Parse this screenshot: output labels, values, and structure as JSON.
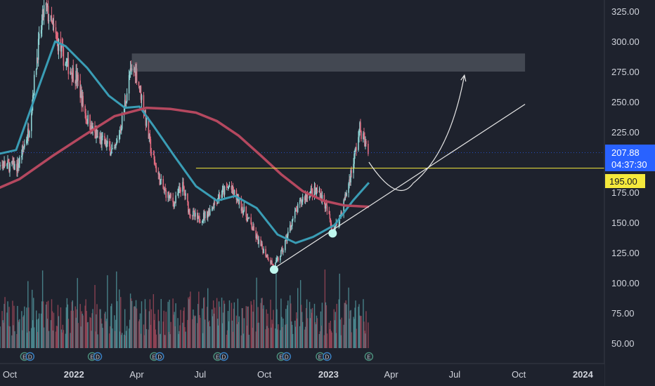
{
  "chart_data": {
    "type": "candlestick",
    "title": "",
    "xlabel": "",
    "ylabel": "",
    "ylim": [
      30,
      335
    ],
    "y_ticks": [
      "325.00",
      "300.00",
      "275.00",
      "250.00",
      "225.00",
      "200.00",
      "175.00",
      "150.00",
      "125.00",
      "100.00",
      "75.00",
      "50.00"
    ],
    "y_tick_values": [
      325,
      300,
      275,
      250,
      225,
      200,
      175,
      150,
      125,
      100,
      75,
      50
    ],
    "x_ticks": [
      {
        "label": "Oct",
        "date": "2021-10-01"
      },
      {
        "label": "2022",
        "date": "2022-01-01"
      },
      {
        "label": "Apr",
        "date": "2022-04-01"
      },
      {
        "label": "Jul",
        "date": "2022-07-01"
      },
      {
        "label": "Oct",
        "date": "2022-10-01"
      },
      {
        "label": "2023",
        "date": "2023-01-01"
      },
      {
        "label": "Apr",
        "date": "2023-04-01"
      },
      {
        "label": "Jul",
        "date": "2023-07-01"
      },
      {
        "label": "Oct",
        "date": "2023-10-01"
      },
      {
        "label": "2024",
        "date": "2024-01-01"
      }
    ],
    "price_anchors": [
      [
        "2021-09-01",
        206
      ],
      [
        "2021-09-20",
        198
      ],
      [
        "2021-10-12",
        196
      ],
      [
        "2021-10-28",
        226
      ],
      [
        "2021-11-10",
        292
      ],
      [
        "2021-11-20",
        330
      ],
      [
        "2021-12-05",
        305
      ],
      [
        "2021-12-20",
        282
      ],
      [
        "2022-01-05",
        270
      ],
      [
        "2022-01-18",
        238
      ],
      [
        "2022-02-01",
        222
      ],
      [
        "2022-02-15",
        215
      ],
      [
        "2022-02-28",
        207
      ],
      [
        "2022-03-10",
        232
      ],
      [
        "2022-03-22",
        272
      ],
      [
        "2022-03-30",
        278
      ],
      [
        "2022-04-10",
        248
      ],
      [
        "2022-04-22",
        208
      ],
      [
        "2022-05-08",
        178
      ],
      [
        "2022-05-25",
        166
      ],
      [
        "2022-06-05",
        182
      ],
      [
        "2022-06-15",
        160
      ],
      [
        "2022-06-28",
        152
      ],
      [
        "2022-07-12",
        158
      ],
      [
        "2022-07-28",
        172
      ],
      [
        "2022-08-12",
        180
      ],
      [
        "2022-08-25",
        168
      ],
      [
        "2022-09-10",
        150
      ],
      [
        "2022-09-25",
        131
      ],
      [
        "2022-10-08",
        120
      ],
      [
        "2022-10-15",
        113
      ],
      [
        "2022-10-28",
        128
      ],
      [
        "2022-11-10",
        152
      ],
      [
        "2022-11-25",
        170
      ],
      [
        "2022-12-08",
        176
      ],
      [
        "2022-12-20",
        175
      ],
      [
        "2022-12-30",
        160
      ],
      [
        "2023-01-07",
        145
      ],
      [
        "2023-01-15",
        150
      ],
      [
        "2023-01-27",
        175
      ],
      [
        "2023-02-05",
        198
      ],
      [
        "2023-02-15",
        228
      ],
      [
        "2023-02-21",
        218
      ],
      [
        "2023-02-27",
        208
      ]
    ],
    "series": [
      {
        "name": "",
        "kind": "moving-average",
        "color": "#3a9db5",
        "points": [
          [
            "2021-09-01",
            205
          ],
          [
            "2021-10-10",
            210
          ],
          [
            "2021-11-10",
            260
          ],
          [
            "2021-12-05",
            300
          ],
          [
            "2021-12-20",
            296
          ],
          [
            "2022-01-20",
            278
          ],
          [
            "2022-02-20",
            255
          ],
          [
            "2022-03-15",
            245
          ],
          [
            "2022-04-05",
            246
          ],
          [
            "2022-04-25",
            230
          ],
          [
            "2022-05-25",
            205
          ],
          [
            "2022-06-25",
            180
          ],
          [
            "2022-07-25",
            168
          ],
          [
            "2022-08-20",
            172
          ],
          [
            "2022-09-20",
            162
          ],
          [
            "2022-10-20",
            140
          ],
          [
            "2022-11-15",
            133
          ],
          [
            "2022-12-10",
            138
          ],
          [
            "2023-01-10",
            148
          ],
          [
            "2023-02-05",
            168
          ],
          [
            "2023-02-28",
            183
          ]
        ]
      },
      {
        "name": "",
        "kind": "moving-average",
        "color": "#b5485f",
        "points": [
          [
            "2021-09-01",
            175
          ],
          [
            "2021-10-15",
            186
          ],
          [
            "2021-12-01",
            205
          ],
          [
            "2022-01-15",
            222
          ],
          [
            "2022-02-28",
            238
          ],
          [
            "2022-04-15",
            245
          ],
          [
            "2022-05-20",
            244
          ],
          [
            "2022-06-25",
            241
          ],
          [
            "2022-07-25",
            234
          ],
          [
            "2022-08-25",
            222
          ],
          [
            "2022-09-25",
            206
          ],
          [
            "2022-10-25",
            190
          ],
          [
            "2022-11-25",
            176
          ],
          [
            "2022-12-25",
            168
          ],
          [
            "2023-01-25",
            164
          ],
          [
            "2023-02-28",
            163
          ]
        ]
      }
    ],
    "current_price": {
      "value": 207.88,
      "label": "207.88",
      "countdown": "04:37:30",
      "color": "#2962ff"
    },
    "horizontal_level": {
      "value": 195,
      "label": "195.00",
      "color": "#f5e93c"
    },
    "resistance_zone": {
      "from": 275,
      "to": 290,
      "start": "2022-03-25",
      "end": "2023-10-10"
    },
    "trendline": {
      "start": [
        "2022-10-15",
        112
      ],
      "end": [
        "2023-10-10",
        248
      ]
    },
    "projection": {
      "points": [
        [
          "2023-02-28",
          200
        ],
        [
          "2023-04-10",
          182
        ],
        [
          "2023-05-25",
          190
        ],
        [
          "2023-07-15",
          272
        ]
      ]
    },
    "pivot_markers": [
      [
        "2022-10-15",
        111
      ],
      [
        "2023-01-07",
        141
      ]
    ],
    "event_badges": [
      {
        "label": "E",
        "date": "2021-10-22"
      },
      {
        "label": "D",
        "date": "2021-10-30"
      },
      {
        "label": "E",
        "date": "2022-01-27"
      },
      {
        "label": "D",
        "date": "2022-02-04"
      },
      {
        "label": "E",
        "date": "2022-04-26"
      },
      {
        "label": "D",
        "date": "2022-05-04"
      },
      {
        "label": "E",
        "date": "2022-07-26"
      },
      {
        "label": "D",
        "date": "2022-08-04"
      },
      {
        "label": "E",
        "date": "2022-10-25"
      },
      {
        "label": "D",
        "date": "2022-11-02"
      },
      {
        "label": "E",
        "date": "2022-12-20"
      },
      {
        "label": "D",
        "date": "2022-12-30"
      },
      {
        "label": "E",
        "date": "2023-02-28"
      }
    ]
  }
}
